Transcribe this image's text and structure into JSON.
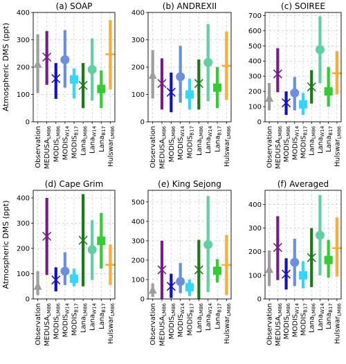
{
  "figure": {
    "ylabel": "Atmospheric DMS (ppt)",
    "categories": [
      {
        "base": "Observation",
        "sub": ""
      },
      {
        "base": "MEDUSA",
        "sub": "LM86"
      },
      {
        "base": "MODIS",
        "sub": "LM86"
      },
      {
        "base": "MODIS",
        "sub": "W14"
      },
      {
        "base": "MODIS",
        "sub": "B17"
      },
      {
        "base": "Lana",
        "sub": "LM86"
      },
      {
        "base": "Lana",
        "sub": "W14"
      },
      {
        "base": "Lana",
        "sub": "B17"
      },
      {
        "base": "Hulswar",
        "sub": "LM86"
      }
    ],
    "colors": [
      "#9e9e9e",
      "#7b1a8c",
      "#1010cc",
      "#6a8fe0",
      "#33d6ff",
      "#1a7a1a",
      "#5fd0a0",
      "#33cc33",
      "#ffaa33"
    ],
    "markers": [
      "triangle",
      "x",
      "x",
      "circle",
      "square",
      "x",
      "circle",
      "square",
      "plus"
    ],
    "grid": true
  },
  "chart_data": [
    {
      "type": "range-marker",
      "title": "(a) SOAP",
      "ylim": [
        0,
        400
      ],
      "yticks": [
        0,
        100,
        200,
        300,
        400
      ],
      "series": [
        {
          "low": 105,
          "high": 320,
          "mean": 210
        },
        {
          "low": 135,
          "high": 332,
          "mean": 237
        },
        {
          "low": 84,
          "high": 215,
          "mean": 158
        },
        {
          "low": 125,
          "high": 335,
          "mean": 227
        },
        {
          "low": 85,
          "high": 195,
          "mean": 155
        },
        {
          "low": 50,
          "high": 215,
          "mean": 133
        },
        {
          "low": 78,
          "high": 305,
          "mean": 191
        },
        {
          "low": 50,
          "high": 188,
          "mean": 120
        },
        {
          "low": 118,
          "high": 372,
          "mean": 247
        }
      ]
    },
    {
      "type": "range-marker",
      "title": "(b) ANDREXII",
      "ylim": [
        0,
        400
      ],
      "yticks": [
        0,
        100,
        200,
        300,
        400
      ],
      "series": [
        {
          "low": 85,
          "high": 262,
          "mean": 170
        },
        {
          "low": 45,
          "high": 232,
          "mean": 140
        },
        {
          "low": 35,
          "high": 180,
          "mean": 108
        },
        {
          "low": 70,
          "high": 278,
          "mean": 165
        },
        {
          "low": 45,
          "high": 158,
          "mean": 100
        },
        {
          "low": 45,
          "high": 228,
          "mean": 140
        },
        {
          "low": 75,
          "high": 357,
          "mean": 217
        },
        {
          "low": 50,
          "high": 200,
          "mean": 125
        },
        {
          "low": 80,
          "high": 330,
          "mean": 205
        }
      ]
    },
    {
      "type": "range-marker",
      "title": "(c) SOIREE",
      "ylim": [
        0,
        720
      ],
      "yticks": [
        0,
        100,
        200,
        300,
        400,
        500,
        600,
        700
      ],
      "series": [
        {
          "low": 75,
          "high": 255,
          "mean": 155
        },
        {
          "low": 195,
          "high": 485,
          "mean": 315
        },
        {
          "low": 45,
          "high": 200,
          "mean": 125
        },
        {
          "low": 75,
          "high": 295,
          "mean": 190
        },
        {
          "low": 45,
          "high": 190,
          "mean": 115
        },
        {
          "low": 120,
          "high": 340,
          "mean": 230
        },
        {
          "low": 255,
          "high": 695,
          "mean": 475
        },
        {
          "low": 100,
          "high": 360,
          "mean": 200
        },
        {
          "low": 180,
          "high": 465,
          "mean": 320
        }
      ]
    },
    {
      "type": "range-marker",
      "title": "(d) Cape Grim",
      "ylim": [
        0,
        430
      ],
      "yticks": [
        0,
        100,
        200,
        300,
        400
      ],
      "series": [
        {
          "low": 15,
          "high": 110,
          "mean": 50
        },
        {
          "low": 95,
          "high": 400,
          "mean": 248
        },
        {
          "low": 30,
          "high": 125,
          "mean": 75
        },
        {
          "low": 55,
          "high": 185,
          "mean": 110
        },
        {
          "low": 50,
          "high": 120,
          "mean": 80
        },
        {
          "low": 50,
          "high": 415,
          "mean": 232
        },
        {
          "low": 75,
          "high": 312,
          "mean": 195
        },
        {
          "low": 120,
          "high": 340,
          "mean": 230
        },
        {
          "low": 55,
          "high": 215,
          "mean": 135
        }
      ]
    },
    {
      "type": "range-marker",
      "title": "(e) King Sejong",
      "ylim": [
        0,
        560
      ],
      "yticks": [
        0,
        100,
        200,
        300,
        400,
        500
      ],
      "series": [
        {
          "low": 10,
          "high": 80,
          "mean": 45
        },
        {
          "low": 0,
          "high": 300,
          "mean": 150
        },
        {
          "low": 5,
          "high": 130,
          "mean": 65
        },
        {
          "low": 30,
          "high": 185,
          "mean": 90
        },
        {
          "low": 15,
          "high": 100,
          "mean": 60
        },
        {
          "low": 0,
          "high": 305,
          "mean": 150
        },
        {
          "low": 35,
          "high": 530,
          "mean": 280
        },
        {
          "low": 85,
          "high": 205,
          "mean": 145
        },
        {
          "low": 20,
          "high": 330,
          "mean": 175
        }
      ]
    },
    {
      "type": "range-marker",
      "title": "(f) Averaged",
      "ylim": [
        0,
        460
      ],
      "yticks": [
        0,
        100,
        200,
        300,
        400
      ],
      "series": [
        {
          "low": 55,
          "high": 205,
          "mean": 125
        },
        {
          "low": 80,
          "high": 350,
          "mean": 218
        },
        {
          "low": 40,
          "high": 172,
          "mean": 105
        },
        {
          "low": 55,
          "high": 255,
          "mean": 155
        },
        {
          "low": 45,
          "high": 160,
          "mean": 100
        },
        {
          "low": 50,
          "high": 300,
          "mean": 175
        },
        {
          "low": 100,
          "high": 440,
          "mean": 270
        },
        {
          "low": 90,
          "high": 250,
          "mean": 165
        },
        {
          "low": 95,
          "high": 345,
          "mean": 215
        }
      ]
    }
  ]
}
